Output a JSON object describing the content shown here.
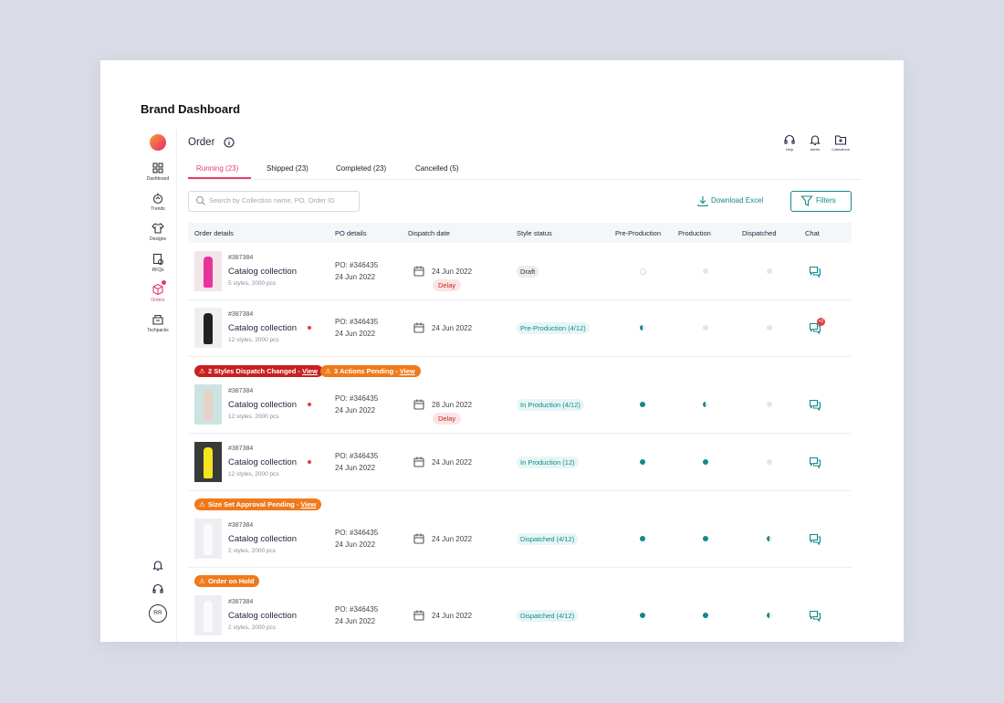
{
  "header": {
    "title": "Brand Dashboard"
  },
  "sidebar": {
    "items": [
      "Dashboard",
      "Trends",
      "Designs",
      "RFQs",
      "Orders",
      "Techpacks"
    ],
    "avatar": "RR"
  },
  "page": {
    "title": "Order",
    "top_actions": [
      "Help",
      "Alerts",
      "Collections"
    ]
  },
  "tabs": [
    "Running (23)",
    "Shipped (23)",
    "Completed (23)",
    "Cancelled (5)"
  ],
  "search": {
    "placeholder": "Search by Collection name, PO, Order ID"
  },
  "actions": {
    "download": "Download Excel",
    "filters": "Filters"
  },
  "table": {
    "columns": [
      "Order details",
      "PO details",
      "Dispatch date",
      "Style status",
      "Pre-Production",
      "Production",
      "Dispatched",
      "Chat"
    ],
    "rows": [
      {
        "order_id": "#387384",
        "name": "Catalog collection",
        "meta": "5 styles, 2000 pcs",
        "po": "PO: #346435",
        "po_date": "24 Jun 2022",
        "dispatch_date": "24 Jun 2022",
        "delay": "Delay",
        "status": "Draft"
      },
      {
        "order_id": "#387384",
        "name": "Catalog collection",
        "meta": "12 styles, 2000 pcs",
        "po": "PO: #346435",
        "po_date": "24 Jun 2022",
        "dispatch_date": "24 Jun 2022",
        "status": "Pre-Production (4/12)",
        "chat_badge": "+2"
      },
      {
        "alerts": [
          {
            "text": "2 Styles Dispatch Changed - ",
            "link": "View"
          },
          {
            "text": "3 Actions Pending - ",
            "link": "View"
          }
        ],
        "order_id": "#387384",
        "name": "Catalog collection",
        "meta": "12 styles, 2000 pcs",
        "po": "PO: #346435",
        "po_date": "24 Jun 2022",
        "dispatch_date": "28 Jun 2022",
        "delay": "Delay",
        "status": "In Production (4/12)"
      },
      {
        "order_id": "#387384",
        "name": "Catalog collection",
        "meta": "12 styles, 2000 pcs",
        "po": "PO: #346435",
        "po_date": "24 Jun 2022",
        "dispatch_date": "24 Jun 2022",
        "status": "In Production (12)"
      },
      {
        "alerts": [
          {
            "text": "Size Set Approval Pending - ",
            "link": "View"
          }
        ],
        "order_id": "#387384",
        "name": "Catalog collection",
        "meta": "2 styles, 2000 pcs",
        "po": "PO: #346435",
        "po_date": "24 Jun 2022",
        "dispatch_date": "24 Jun 2022",
        "status": "Dispatched (4/12)"
      },
      {
        "alerts": [
          {
            "text": "Order on Hold"
          }
        ],
        "order_id": "#387384",
        "name": "Catalog collection",
        "meta": "2 styles, 2000 pcs",
        "po": "PO: #346435",
        "po_date": "24 Jun 2022",
        "dispatch_date": "24 Jun 2022",
        "status": "Dispatched (4/12)"
      }
    ]
  }
}
